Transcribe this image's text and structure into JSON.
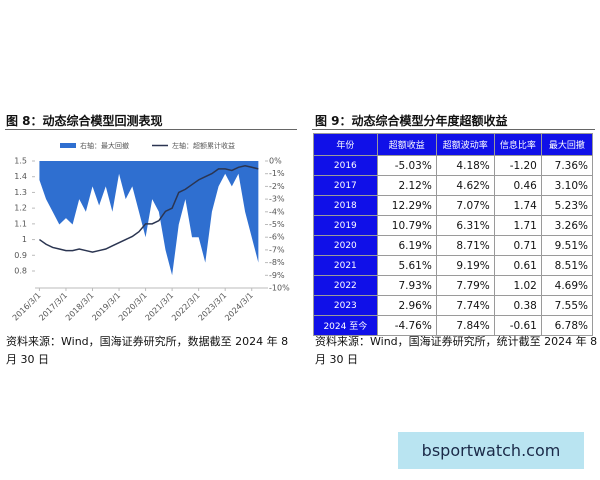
{
  "figure8_title": "图 8：动态综合模型回测表现",
  "figure9_title": "图 9：动态综合模型分年度超额收益",
  "source8": "资料来源：Wind，国海证券研究所，数据截至 2024 年 8 月 30 日",
  "source9": "资料来源：Wind，国海证券研究所，统计截至 2024 年 8 月 30 日",
  "watermark": "bsportwatch.com",
  "chart_data": {
    "type": "combo",
    "x": [
      "2016/3/1",
      "2016/6/1",
      "2016/9/1",
      "2016/12/1",
      "2017/3/1",
      "2017/6/1",
      "2017/9/1",
      "2017/12/1",
      "2018/3/1",
      "2018/6/1",
      "2018/9/1",
      "2018/12/1",
      "2019/3/1",
      "2019/6/1",
      "2019/9/1",
      "2019/12/1",
      "2020/3/1",
      "2020/6/1",
      "2020/9/1",
      "2020/12/1",
      "2021/3/1",
      "2021/6/1",
      "2021/9/1",
      "2021/12/1",
      "2022/3/1",
      "2022/6/1",
      "2022/9/1",
      "2022/12/1",
      "2023/3/1",
      "2023/6/1",
      "2023/9/1",
      "2023/12/1",
      "2024/3/1",
      "2024/6/1"
    ],
    "xlim": [
      "2016/1/1",
      "2024/9/1"
    ],
    "xticks": [
      "2016/3/1",
      "2017/3/1",
      "2018/3/1",
      "2019/3/1",
      "2020/3/1",
      "2021/3/1",
      "2022/3/1",
      "2023/3/1",
      "2024/3/1"
    ],
    "ylim": [
      0.8,
      1.5
    ],
    "yticks": [
      0.8,
      0.9,
      1,
      1.1,
      1.2,
      1.3,
      1.4,
      1.5
    ],
    "y2lim": [
      -10,
      0
    ],
    "y2ticks": [
      {
        "value": 0,
        "label": "0%"
      },
      {
        "value": -1,
        "label": "-1%"
      },
      {
        "value": -2,
        "label": "-2%"
      },
      {
        "value": -3,
        "label": "-3%"
      },
      {
        "value": -4,
        "label": "-4%"
      },
      {
        "value": -5,
        "label": "-5%"
      },
      {
        "value": -6,
        "label": "-6%"
      },
      {
        "value": -7,
        "label": "-7%"
      },
      {
        "value": -8,
        "label": "-8%"
      },
      {
        "value": -9,
        "label": "-9%"
      },
      {
        "value": -10,
        "label": "-10%"
      }
    ],
    "series": [
      {
        "name": "右轴：最大回撤",
        "type": "area",
        "axis": "y2",
        "color": "#2f6fd0",
        "values": [
          -1.5,
          -3,
          -4,
          -5,
          -4.5,
          -5,
          -3,
          -4,
          -2,
          -3.5,
          -2,
          -4,
          -1,
          -3,
          -2,
          -4,
          -6,
          -3,
          -4,
          -7,
          -9,
          -5,
          -3,
          -6,
          -6,
          -8,
          -4,
          -2,
          -1,
          -2,
          -1,
          -4,
          -6,
          -8
        ]
      },
      {
        "name": "左轴：超额累计收益",
        "type": "line",
        "color": "#2b3551",
        "values": [
          1.0,
          0.97,
          0.95,
          0.94,
          0.93,
          0.93,
          0.94,
          0.93,
          0.92,
          0.93,
          0.94,
          0.96,
          0.98,
          1.0,
          1.02,
          1.05,
          1.1,
          1.1,
          1.12,
          1.18,
          1.2,
          1.3,
          1.32,
          1.35,
          1.38,
          1.4,
          1.42,
          1.45,
          1.45,
          1.44,
          1.46,
          1.47,
          1.46,
          1.45
        ]
      }
    ]
  },
  "table": {
    "header": [
      "年份",
      "超额收益",
      "超额波动率",
      "信息比率",
      "最大回撤"
    ],
    "rows": [
      [
        "2016",
        "-5.03%",
        "4.18%",
        "-1.20",
        "7.36%"
      ],
      [
        "2017",
        "2.12%",
        "4.62%",
        "0.46",
        "3.10%"
      ],
      [
        "2018",
        "12.29%",
        "7.07%",
        "1.74",
        "5.23%"
      ],
      [
        "2019",
        "10.79%",
        "6.31%",
        "1.71",
        "3.26%"
      ],
      [
        "2020",
        "6.19%",
        "8.71%",
        "0.71",
        "9.51%"
      ],
      [
        "2021",
        "5.61%",
        "9.19%",
        "0.61",
        "8.51%"
      ],
      [
        "2022",
        "7.93%",
        "7.79%",
        "1.02",
        "4.69%"
      ],
      [
        "2023",
        "2.96%",
        "7.74%",
        "0.38",
        "7.55%"
      ],
      [
        "2024 至今",
        "-4.76%",
        "7.84%",
        "-0.61",
        "6.78%"
      ]
    ]
  }
}
